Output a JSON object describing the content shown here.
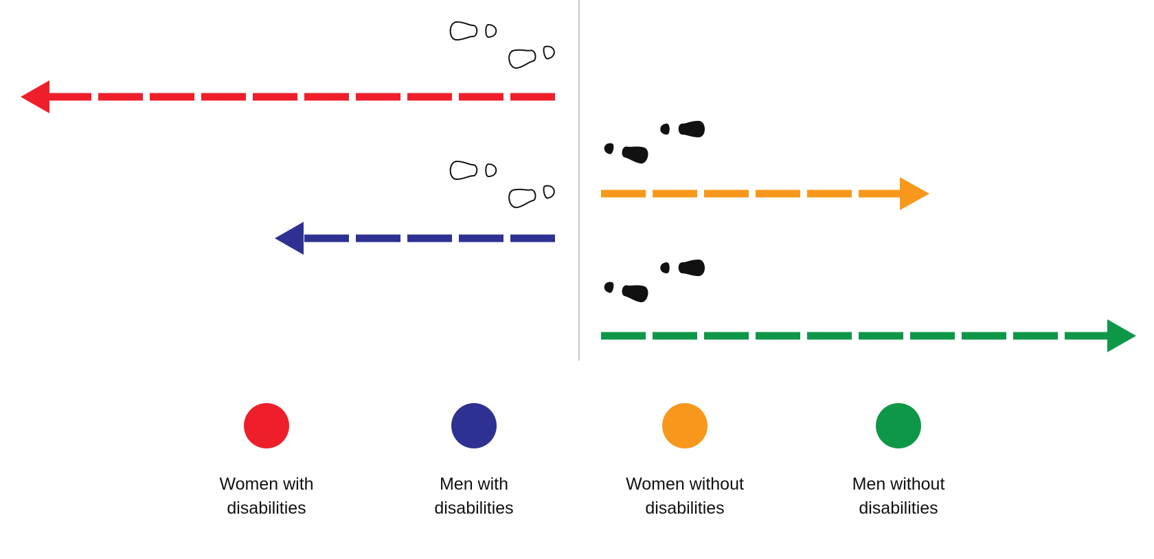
{
  "colors": {
    "women_with": "#ee1f2a",
    "men_with": "#2e3192",
    "women_without": "#f7981d",
    "men_without": "#0f9748",
    "axis": "#b3b3b3",
    "footprint": "#111111"
  },
  "arrows": [
    {
      "key": "women_with",
      "direction": "left",
      "color": "#ee1f2a",
      "footprints": "outline"
    },
    {
      "key": "men_with",
      "direction": "left",
      "color": "#2e3192",
      "footprints": "outline"
    },
    {
      "key": "women_without",
      "direction": "right",
      "color": "#f7981d",
      "footprints": "filled"
    },
    {
      "key": "men_without",
      "direction": "right",
      "color": "#0f9748",
      "footprints": "filled"
    }
  ],
  "legend": [
    {
      "key": "women_with",
      "color": "#ee1f2a",
      "line1": "Women with",
      "line2": "disabilities"
    },
    {
      "key": "men_with",
      "color": "#2e3192",
      "line1": "Men with",
      "line2": "disabilities"
    },
    {
      "key": "women_without",
      "color": "#f7981d",
      "line1": "Women without",
      "line2": "disabilities"
    },
    {
      "key": "men_without",
      "color": "#0f9748",
      "line1": "Men without",
      "line2": "disabilities"
    }
  ]
}
